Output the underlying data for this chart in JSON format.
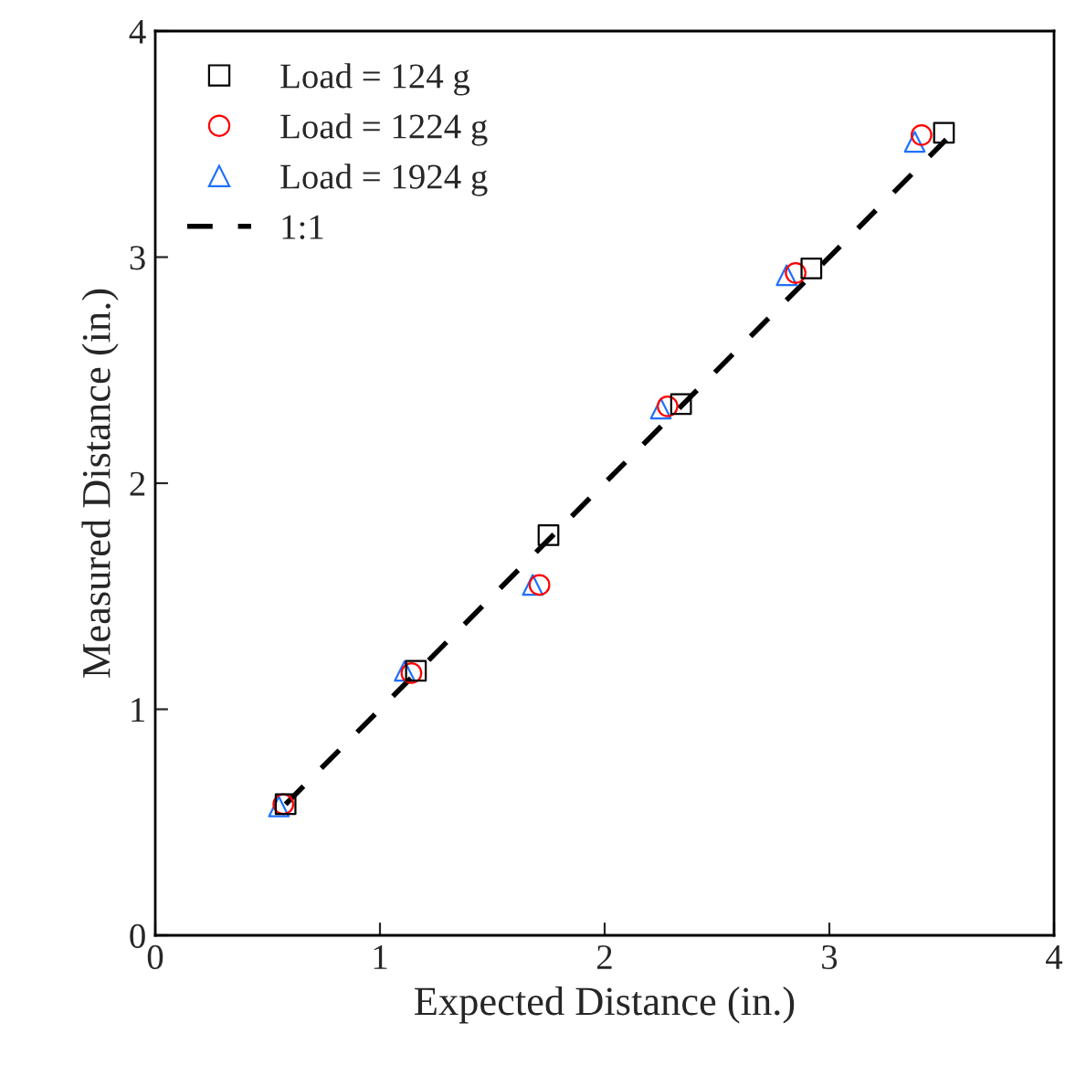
{
  "chart_data": {
    "type": "scatter",
    "xlabel": "Expected Distance (in.)",
    "ylabel": "Measured Distance (in.)",
    "xlim": [
      0,
      4
    ],
    "ylim": [
      0,
      4
    ],
    "xticks": [
      0,
      1,
      2,
      3,
      4
    ],
    "yticks": [
      0,
      1,
      2,
      3,
      4
    ],
    "grid": false,
    "legend": "top left",
    "series": [
      {
        "name": "Load = 124 g",
        "marker": "square",
        "color": "#000000",
        "x": [
          0.58,
          1.16,
          1.75,
          2.34,
          2.92,
          3.51
        ],
        "values": [
          0.58,
          1.17,
          1.77,
          2.35,
          2.95,
          3.55
        ]
      },
      {
        "name": "Load = 1224 g",
        "marker": "circle",
        "color": "#ff0000",
        "x": [
          0.57,
          1.14,
          1.71,
          2.28,
          2.85,
          3.41
        ],
        "values": [
          0.58,
          1.16,
          1.55,
          2.34,
          2.93,
          3.54
        ]
      },
      {
        "name": "Load = 1924 g",
        "marker": "triangle",
        "color": "#1f6fff",
        "x": [
          0.55,
          1.11,
          1.68,
          2.25,
          2.81,
          3.38
        ],
        "values": [
          0.57,
          1.17,
          1.55,
          2.33,
          2.92,
          3.51
        ]
      },
      {
        "name": "1:1",
        "type": "line",
        "line_style": "dashed",
        "marker": "none",
        "color": "#000000",
        "x": [
          0.58,
          3.52
        ],
        "values": [
          0.58,
          3.52
        ]
      }
    ]
  }
}
